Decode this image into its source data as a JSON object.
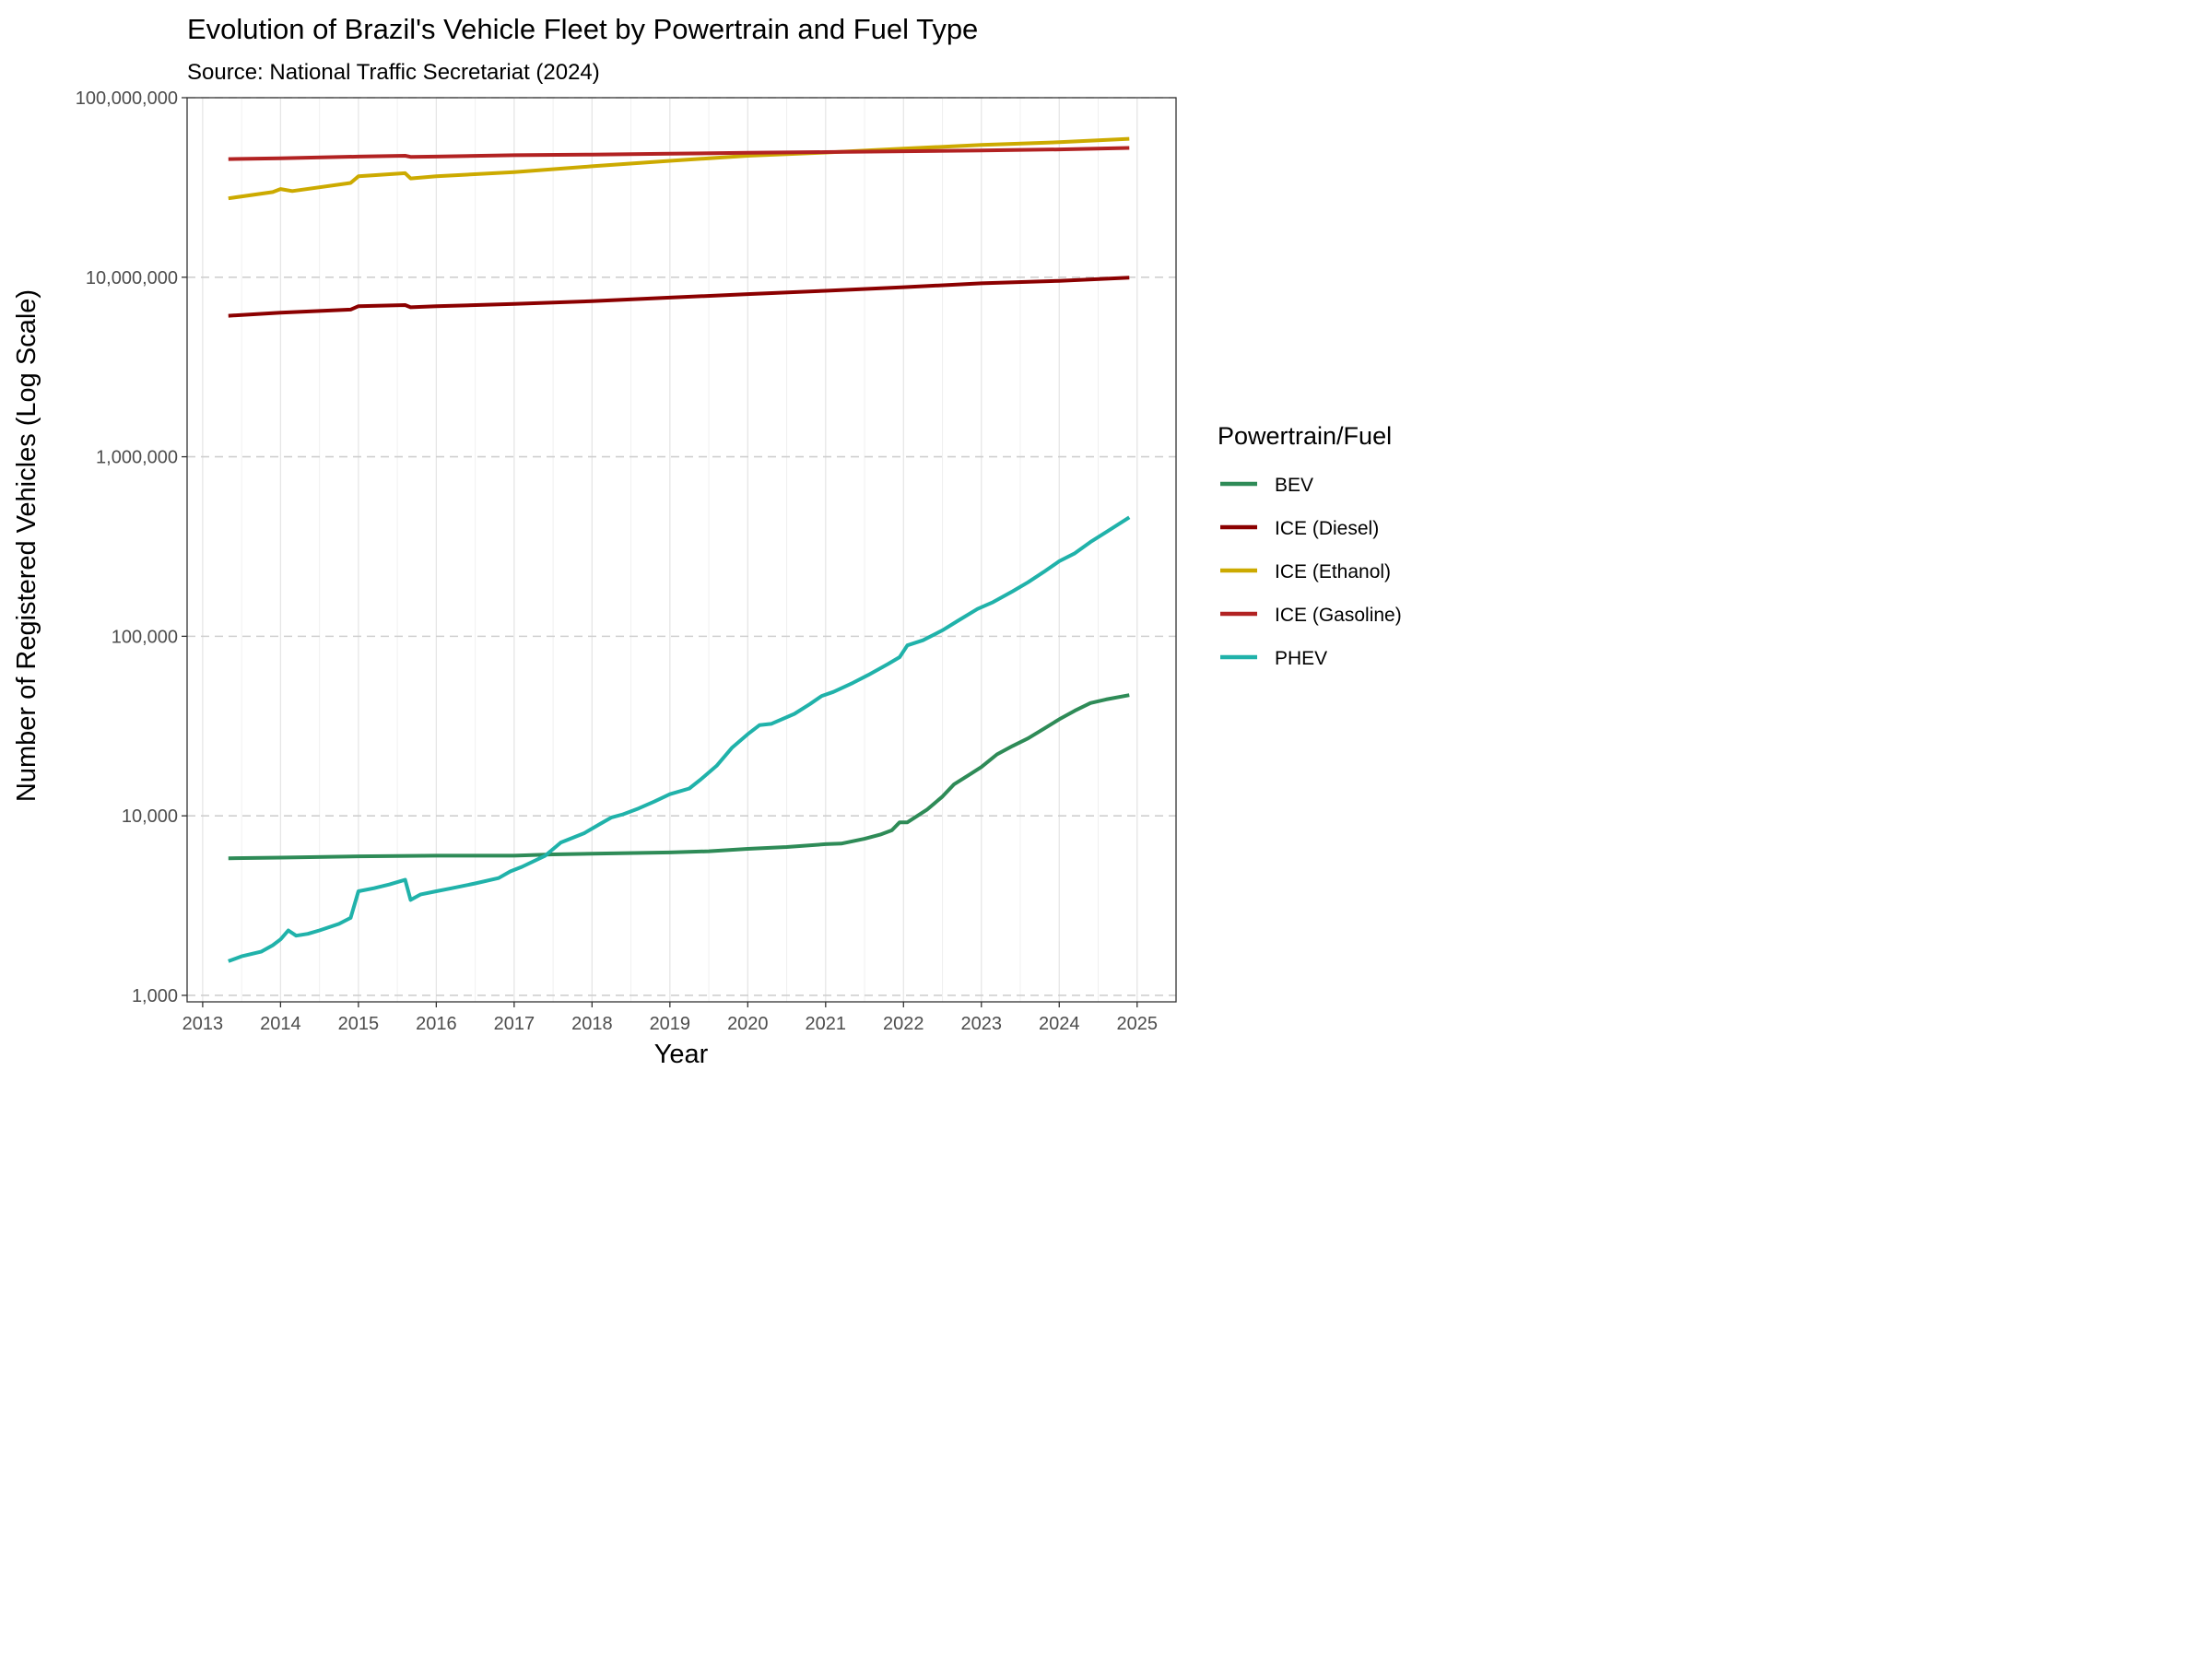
{
  "chart_data": {
    "type": "line",
    "title": "Evolution of Brazil's Vehicle Fleet by Powertrain and Fuel Type",
    "subtitle": "Source: National Traffic Secretariat (2024)",
    "xlabel": "Year",
    "ylabel": "Number of Registered Vehicles (Log Scale)",
    "y_scale": "log10",
    "xlim": [
      2012.8,
      2025.5
    ],
    "ylim": [
      920,
      100000000
    ],
    "x_ticks": [
      2013,
      2014,
      2015,
      2016,
      2017,
      2018,
      2019,
      2020,
      2021,
      2022,
      2023,
      2024,
      2025
    ],
    "x_tick_labels": [
      "2013",
      "2014",
      "2015",
      "2016",
      "2017",
      "2018",
      "2019",
      "2020",
      "2021",
      "2022",
      "2023",
      "2024",
      "2025"
    ],
    "y_ticks": [
      1000,
      10000,
      100000,
      1000000,
      10000000,
      100000000
    ],
    "y_tick_labels": [
      "1,000",
      "10,000",
      "100,000",
      "1,000,000",
      "10,000,000",
      "100,000,000"
    ],
    "grid": true,
    "legend": {
      "title": "Powertrain/Fuel",
      "position": "right",
      "entries": [
        "BEV",
        "ICE (Diesel)",
        "ICE (Ethanol)",
        "ICE (Gasoline)",
        "PHEV"
      ]
    },
    "series": [
      {
        "name": "BEV",
        "color": "#2e8b57",
        "x": [
          2013.33,
          2014.0,
          2015.0,
          2016.0,
          2017.0,
          2017.5,
          2018.0,
          2019.0,
          2019.5,
          2020.0,
          2020.5,
          2021.0,
          2021.2,
          2021.5,
          2021.7,
          2021.85,
          2021.95,
          2022.05,
          2022.3,
          2022.5,
          2022.65,
          2022.85,
          2023.0,
          2023.2,
          2023.4,
          2023.6,
          2023.8,
          2024.0,
          2024.2,
          2024.4,
          2024.6,
          2024.9
        ],
        "y": [
          5800,
          5850,
          5950,
          6000,
          6000,
          6100,
          6150,
          6250,
          6350,
          6550,
          6700,
          6950,
          7000,
          7450,
          7850,
          8300,
          9200,
          9200,
          10800,
          12800,
          15000,
          17000,
          18700,
          22000,
          24500,
          27000,
          30500,
          34500,
          38500,
          42500,
          44500,
          47000
        ]
      },
      {
        "name": "ICE (Diesel)",
        "color": "#8b0000",
        "x": [
          2013.33,
          2014.0,
          2014.9,
          2015.0,
          2015.6,
          2015.67,
          2016.0,
          2017.0,
          2018.0,
          2019.0,
          2020.0,
          2021.0,
          2022.0,
          2023.0,
          2024.0,
          2024.9
        ],
        "y": [
          6100000,
          6350000,
          6600000,
          6900000,
          7000000,
          6800000,
          6900000,
          7100000,
          7350000,
          7700000,
          8050000,
          8400000,
          8800000,
          9250000,
          9550000,
          9950000
        ]
      },
      {
        "name": "ICE (Ethanol)",
        "color": "#ccaa00",
        "x": [
          2013.33,
          2013.9,
          2014.0,
          2014.15,
          2014.9,
          2015.0,
          2015.6,
          2015.67,
          2016.0,
          2017.0,
          2018.0,
          2019.0,
          2020.0,
          2021.0,
          2022.0,
          2023.0,
          2024.0,
          2024.9
        ],
        "y": [
          27500000,
          29800000,
          31000000,
          30200000,
          33500000,
          36500000,
          38000000,
          35500000,
          36500000,
          38500000,
          41500000,
          44500000,
          47500000,
          49500000,
          52000000,
          54500000,
          56500000,
          59000000
        ]
      },
      {
        "name": "ICE (Gasoline)",
        "color": "#b22222",
        "x": [
          2013.33,
          2014.0,
          2015.0,
          2015.6,
          2015.67,
          2016.0,
          2017.0,
          2018.0,
          2019.0,
          2020.0,
          2021.0,
          2022.0,
          2023.0,
          2024.0,
          2024.9
        ],
        "y": [
          45500000,
          46000000,
          47000000,
          47500000,
          46800000,
          47000000,
          47800000,
          48200000,
          48800000,
          49300000,
          49800000,
          50300000,
          50800000,
          51500000,
          52500000
        ],
        "emphasis": true
      },
      {
        "name": "PHEV",
        "color": "#20b2aa",
        "x": [
          2013.33,
          2013.5,
          2013.75,
          2013.9,
          2014.0,
          2014.1,
          2014.2,
          2014.35,
          2014.5,
          2014.75,
          2014.9,
          2015.0,
          2015.2,
          2015.4,
          2015.6,
          2015.67,
          2015.8,
          2016.0,
          2016.2,
          2016.5,
          2016.8,
          2016.95,
          2017.1,
          2017.4,
          2017.6,
          2017.9,
          2018.1,
          2018.25,
          2018.4,
          2018.6,
          2018.8,
          2019.0,
          2019.25,
          2019.4,
          2019.6,
          2019.8,
          2020.0,
          2020.15,
          2020.3,
          2020.6,
          2020.8,
          2020.95,
          2021.1,
          2021.35,
          2021.55,
          2021.8,
          2021.95,
          2022.05,
          2022.25,
          2022.5,
          2022.7,
          2022.95,
          2023.15,
          2023.4,
          2023.6,
          2023.8,
          2024.0,
          2024.2,
          2024.4,
          2024.6,
          2024.9
        ],
        "y": [
          1550,
          1650,
          1750,
          1900,
          2050,
          2300,
          2150,
          2200,
          2300,
          2500,
          2700,
          3800,
          3950,
          4150,
          4400,
          3400,
          3650,
          3800,
          3950,
          4200,
          4500,
          4900,
          5200,
          6000,
          7100,
          8000,
          9000,
          9800,
          10200,
          11000,
          12000,
          13200,
          14200,
          16000,
          19000,
          24000,
          28500,
          32000,
          32500,
          37000,
          42000,
          46500,
          49000,
          55000,
          61000,
          70000,
          76500,
          89000,
          95000,
          108000,
          122000,
          142000,
          155000,
          178000,
          200000,
          228000,
          262000,
          290000,
          335000,
          380000,
          460000
        ]
      }
    ]
  }
}
